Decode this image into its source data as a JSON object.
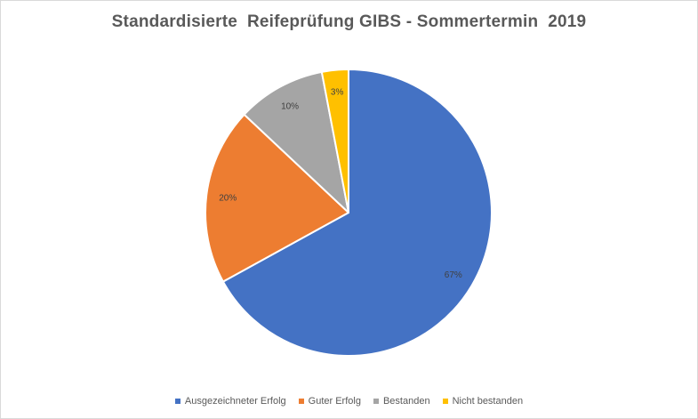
{
  "chart_data": {
    "type": "pie",
    "title": "Standardisierte  Reifeprüfung GIBS - Sommertermin  2019",
    "categories": [
      "Ausgezeichneter Erfolg",
      "Guter Erfolg",
      "Bestanden",
      "Nicht bestanden"
    ],
    "values": [
      67,
      20,
      10,
      3
    ],
    "data_labels": [
      "67%",
      "20%",
      "10%",
      "3%"
    ],
    "colors": [
      "#4472C4",
      "#ED7D31",
      "#A5A5A5",
      "#FFC000"
    ],
    "legend_position": "bottom",
    "start_angle": "12 o'clock, clockwise"
  }
}
